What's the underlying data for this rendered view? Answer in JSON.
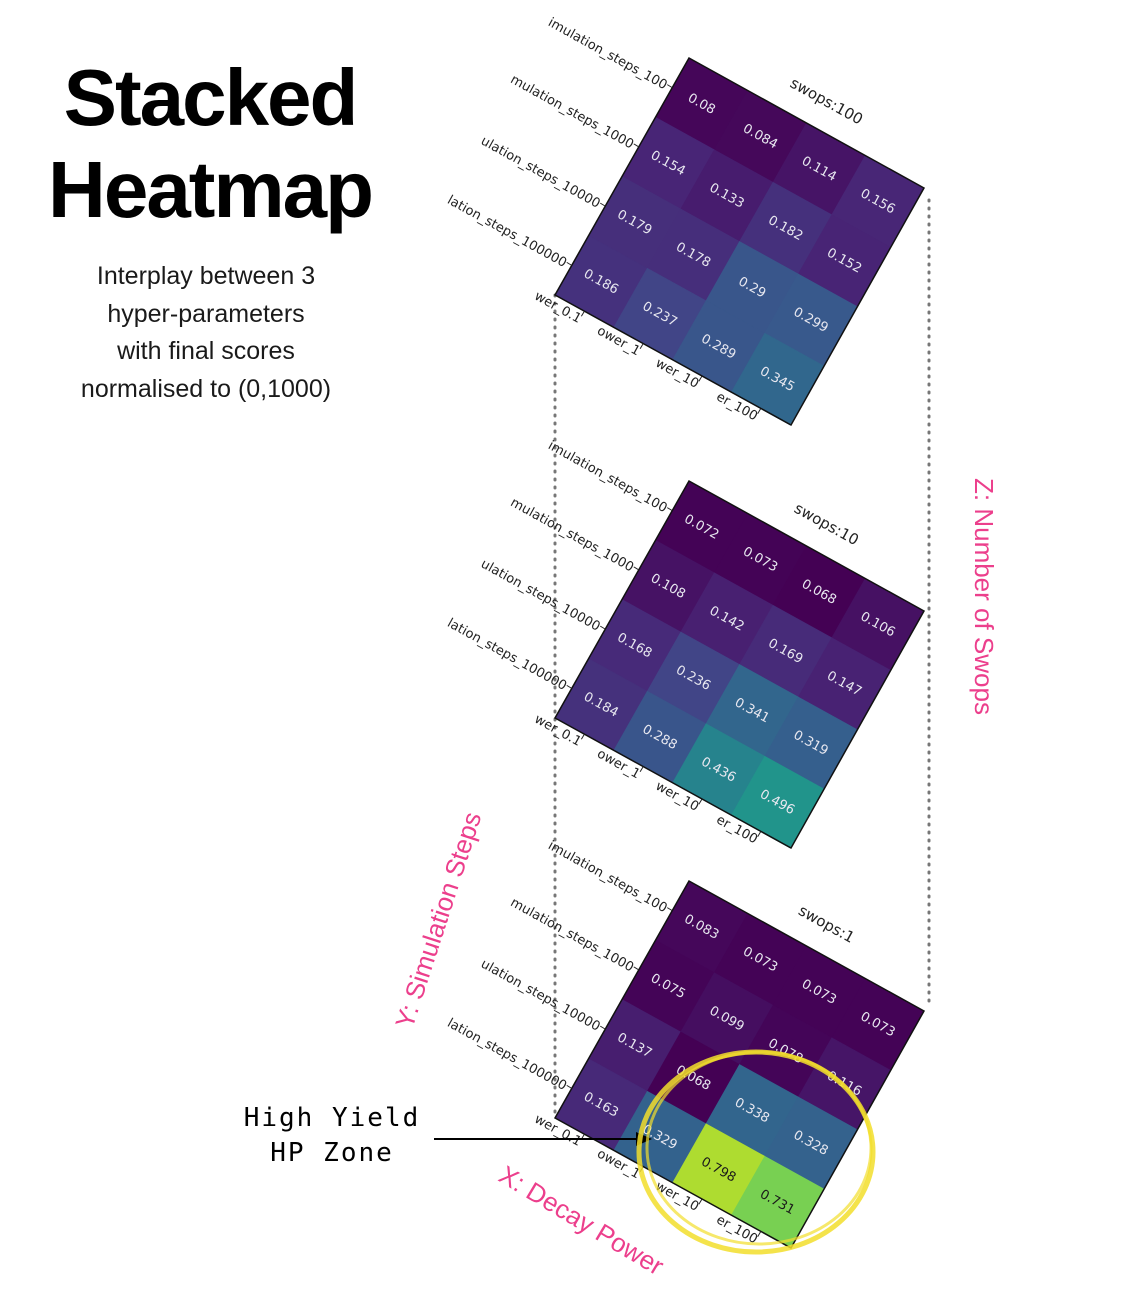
{
  "header": {
    "title_line1": "Stacked",
    "title_line2": "Heatmap",
    "subtitle_lines": [
      "Interplay between 3",
      "hyper-parameters",
      "with final scores",
      "normalised to (0,1000)"
    ]
  },
  "axis_names": {
    "x": "X: Decay Power",
    "y": "Y: Simulation Steps",
    "z": "Z: Number of Swops"
  },
  "annotation": {
    "line1": "High Yield",
    "line2": "HP Zone"
  },
  "colors": {
    "axis_name": "#ec3f8c",
    "highlight_circle": "#f2de2c",
    "guide_dots": "#777777"
  },
  "chart_data": {
    "type": "heatmap",
    "row_labels": [
      "imulation_steps_100",
      "mulation_steps_1000",
      "ulation_steps_10000",
      "lation_steps_100000"
    ],
    "col_labels": [
      "wer_0.1",
      "ower_1",
      "wer_10",
      "er_100"
    ],
    "colormap": "viridis",
    "panels": [
      {
        "title": "swops:100",
        "values": [
          [
            0.08,
            0.084,
            0.114,
            0.156
          ],
          [
            0.154,
            0.133,
            0.182,
            0.152
          ],
          [
            0.179,
            0.178,
            0.29,
            0.299
          ],
          [
            0.186,
            0.237,
            0.289,
            0.345
          ]
        ]
      },
      {
        "title": "swops:10",
        "values": [
          [
            0.072,
            0.073,
            0.068,
            0.106
          ],
          [
            0.108,
            0.142,
            0.169,
            0.147
          ],
          [
            0.168,
            0.236,
            0.341,
            0.319
          ],
          [
            0.184,
            0.288,
            0.436,
            0.496
          ]
        ]
      },
      {
        "title": "swops:1",
        "values": [
          [
            0.083,
            0.073,
            0.073,
            0.073
          ],
          [
            0.075,
            0.099,
            0.078,
            0.116
          ],
          [
            0.137,
            0.068,
            0.338,
            0.328
          ],
          [
            0.163,
            0.329,
            0.798,
            0.731
          ]
        ]
      }
    ]
  }
}
